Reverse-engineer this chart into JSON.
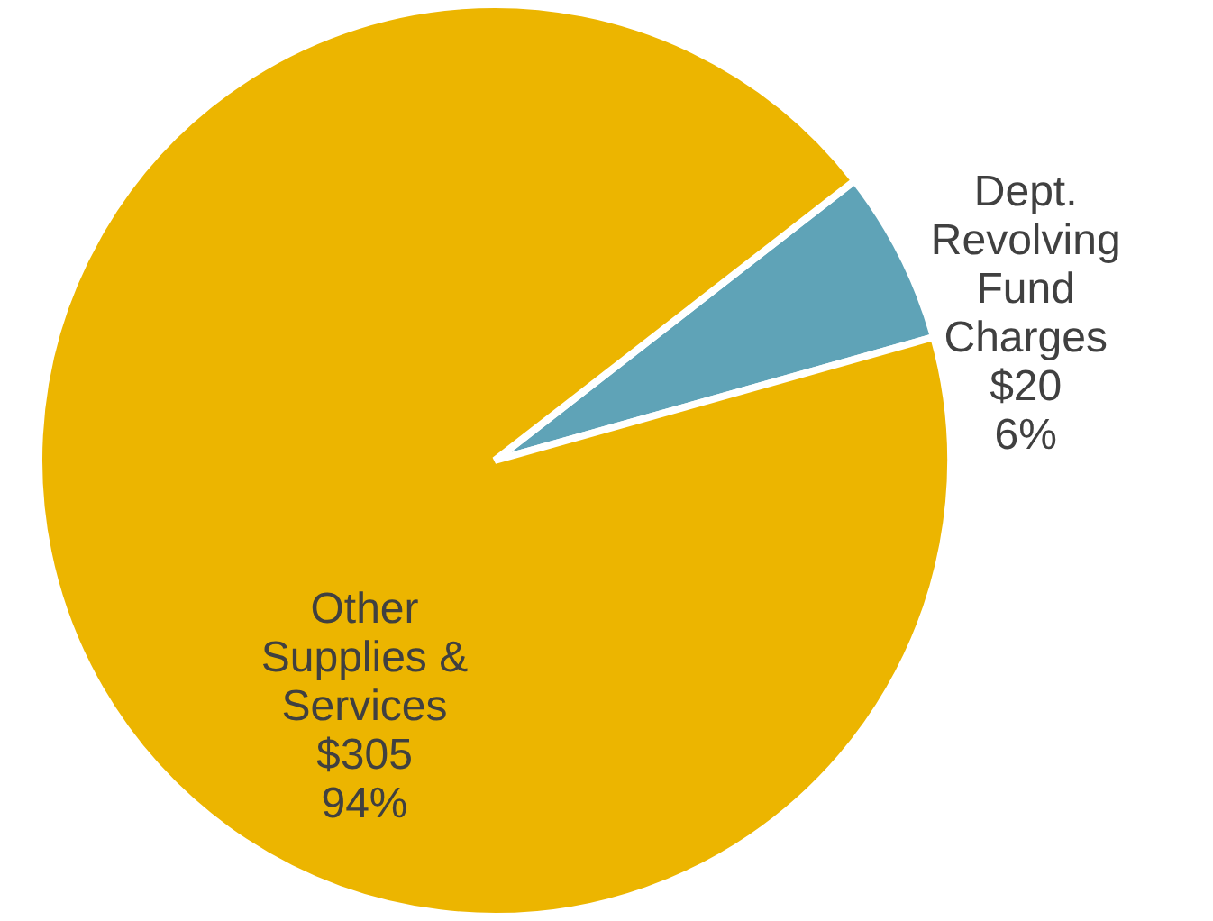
{
  "chart_data": {
    "type": "pie",
    "categories": [
      "Dept. Revolving Fund Charges",
      "Other Supplies & Services"
    ],
    "values": [
      20,
      305
    ],
    "colors": [
      "#5fa3b7",
      "#ecb500"
    ],
    "value_labels": [
      "$20\n6%",
      "$305\n94%"
    ]
  }
}
